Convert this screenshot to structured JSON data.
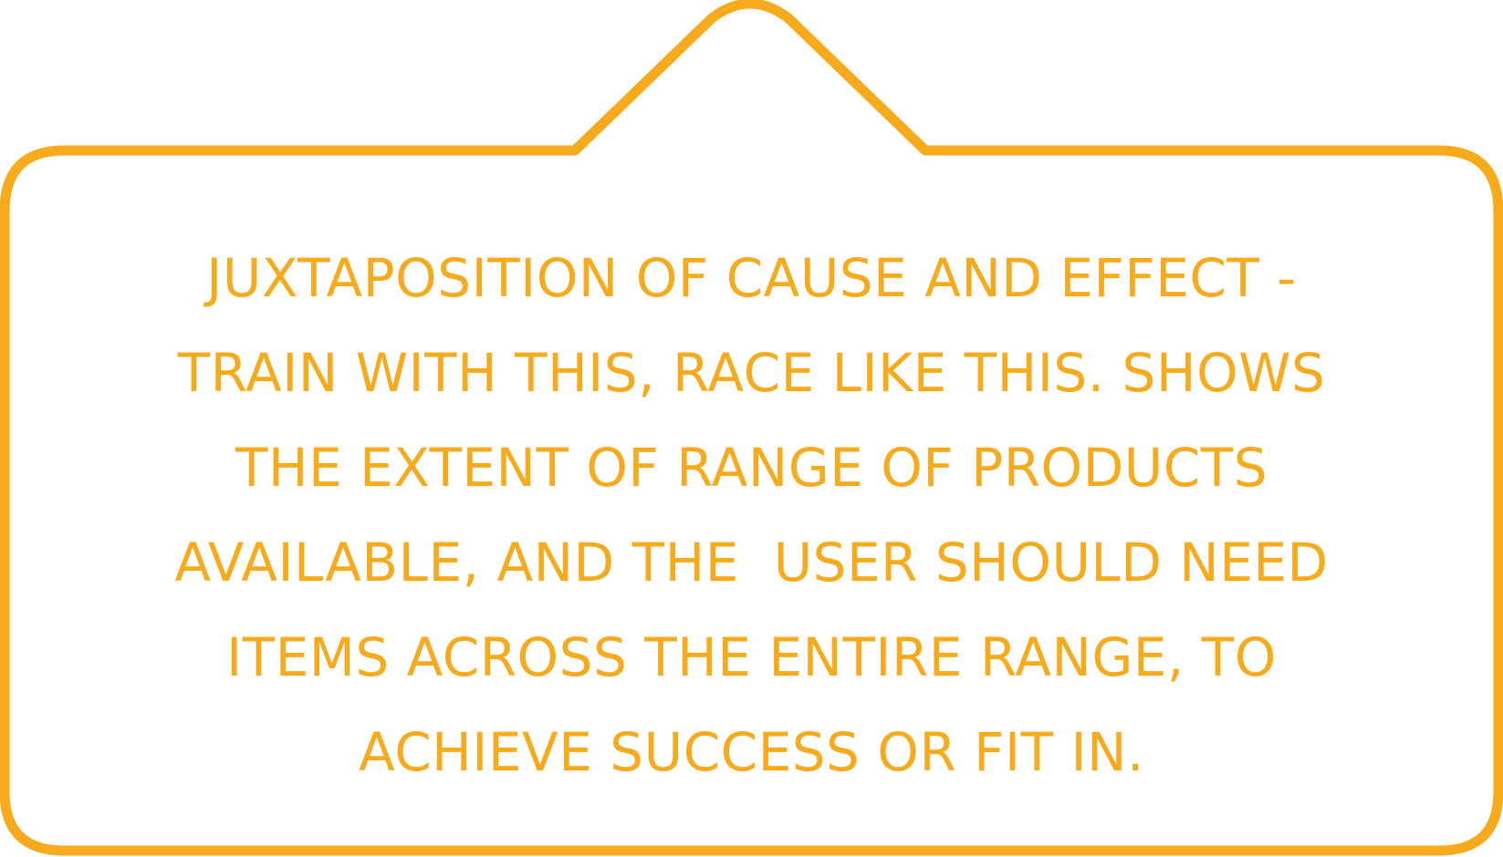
{
  "accent_color": "#f6aa1c",
  "callout": {
    "lines": [
      "JUXTAPOSITION OF CAUSE AND EFFECT -",
      "TRAIN WITH THIS, RACE LIKE THIS. SHOWS",
      "THE EXTENT OF RANGE OF PRODUCTS",
      "AVAILABLE, AND THE  USER SHOULD NEED",
      "ITEMS ACROSS THE ENTIRE RANGE, TO",
      "ACHIEVE SUCCESS OR FIT IN."
    ]
  }
}
